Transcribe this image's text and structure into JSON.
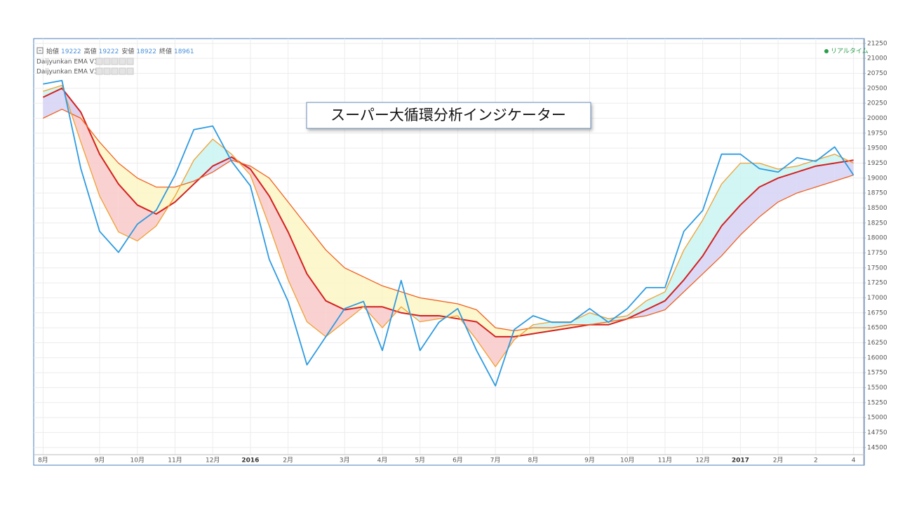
{
  "chart_data": {
    "type": "line",
    "title": "スーパー大循環分析インジケーター",
    "ohlc": [
      {
        "label": "始値",
        "value": 19222
      },
      {
        "label": "高値",
        "value": 19222
      },
      {
        "label": "安値",
        "value": 18922
      },
      {
        "label": "終値",
        "value": 18961
      }
    ],
    "indicators": [
      "Daijyunkan EMA V3",
      "Daijyunkan EMA V3"
    ],
    "status": "リアルタイム",
    "categories": [
      "8月",
      null,
      null,
      "9月",
      null,
      "10月",
      null,
      "11月",
      null,
      "12月",
      null,
      "2016",
      null,
      "2月",
      null,
      null,
      "3月",
      null,
      "4月",
      null,
      "5月",
      null,
      "6月",
      null,
      "7月",
      null,
      "8月",
      null,
      null,
      "9月",
      null,
      "10月",
      null,
      "11月",
      null,
      "12月",
      null,
      "2017",
      null,
      "2月",
      null,
      "2",
      null,
      "4"
    ],
    "series": [
      {
        "color": "#d42020",
        "values": [
          20350,
          20500,
          20100,
          19400,
          18900,
          18550,
          18400,
          18600,
          18900,
          19200,
          19350,
          19150,
          18700,
          18100,
          17400,
          16950,
          16800,
          16850,
          16850,
          16750,
          16700,
          16700,
          16650,
          16600,
          16350,
          16350,
          16400,
          16450,
          16500,
          16550,
          16550,
          16650,
          16800,
          16950,
          17300,
          17700,
          18200,
          18550,
          18850,
          19000,
          19100,
          19200,
          19250,
          19300
        ]
      },
      {
        "color": "#f06020",
        "values": [
          20000,
          20150,
          20000,
          19600,
          19250,
          19000,
          18850,
          18850,
          18950,
          19100,
          19300,
          19200,
          19000,
          18600,
          18200,
          17800,
          17500,
          17350,
          17200,
          17100,
          17000,
          16950,
          16900,
          16800,
          16500,
          16450,
          16500,
          16500,
          16550,
          16550,
          16600,
          16650,
          16700,
          16800,
          17100,
          17400,
          17700,
          18050,
          18350,
          18600,
          18750,
          18850,
          18950,
          19050
        ]
      },
      {
        "color": "#f0a030",
        "values": [
          20450,
          20550,
          19600,
          18700,
          18100,
          17950,
          18200,
          18700,
          19300,
          19650,
          19400,
          19050,
          18200,
          17300,
          16600,
          16350,
          16600,
          16850,
          16500,
          16850,
          16600,
          16650,
          16700,
          16300,
          15850,
          16300,
          16550,
          16600,
          16600,
          16750,
          16650,
          16700,
          16950,
          17100,
          17800,
          18300,
          18900,
          19250,
          19250,
          19150,
          19200,
          19300,
          19400,
          19250
        ]
      },
      {
        "color": "#2e9be0",
        "values": [
          20570,
          20630,
          19160,
          18110,
          17760,
          18230,
          18460,
          19050,
          19810,
          19870,
          19280,
          18870,
          17640,
          16940,
          15880,
          16350,
          16820,
          16940,
          16120,
          17290,
          16120,
          16590,
          16820,
          16120,
          15530,
          16470,
          16700,
          16590,
          16590,
          16820,
          16590,
          16820,
          17170,
          17170,
          18110,
          18460,
          19400,
          19400,
          19160,
          19100,
          19340,
          19280,
          19520,
          19050
        ]
      }
    ],
    "fill_colors": {
      "short_below": "#f9c9c9",
      "short_above": "#c9f5f2",
      "mid_below": "#fbf6c4",
      "mid_above": "#d6d2f5"
    },
    "ylim": [
      14380,
      21330
    ],
    "yticks": [
      14500,
      14750,
      15000,
      15250,
      15500,
      15750,
      16000,
      16250,
      16500,
      16750,
      17000,
      17250,
      17500,
      17750,
      18000,
      18250,
      18500,
      18750,
      19000,
      19250,
      19500,
      19750,
      20000,
      20250,
      20500,
      20750,
      21000,
      21250
    ],
    "grid": true
  }
}
